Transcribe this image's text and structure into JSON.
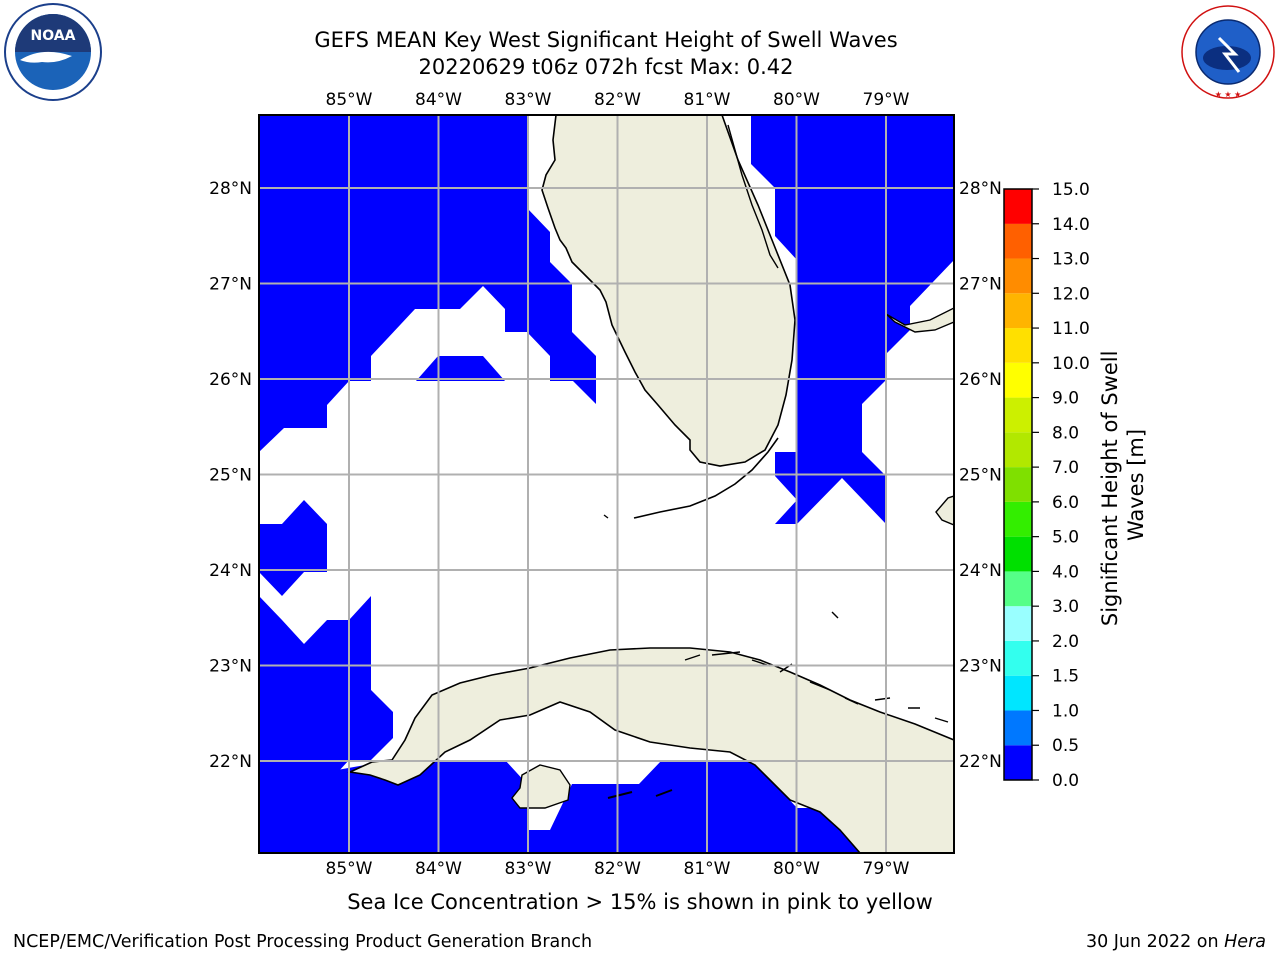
{
  "header": {
    "title_line1": "GEFS MEAN Key West Significant Height of Swell Waves",
    "title_line2": "20220629 t06z 072h fcst   Max: 0.42"
  },
  "logos": {
    "left": "NOAA",
    "right": "NATIONAL WEATHER SERVICE"
  },
  "map": {
    "longitude_ticks": [
      "85°W",
      "84°W",
      "83°W",
      "82°W",
      "81°W",
      "80°W",
      "79°W"
    ],
    "latitude_ticks": [
      "28°N",
      "27°N",
      "26°N",
      "25°N",
      "24°N",
      "23°N",
      "22°N"
    ],
    "lon_values": [
      -85,
      -84,
      -83,
      -82,
      -81,
      -80,
      -79
    ],
    "lat_values": [
      28,
      27,
      26,
      25,
      24,
      23,
      22
    ],
    "colors": {
      "water": "#0000ff",
      "land": "#eeeedd",
      "grid": "#b0b0b0",
      "empty": "#ffffff"
    }
  },
  "colorbar": {
    "label": "Significant Height of Swell Waves [m]",
    "ticks": [
      "15.0",
      "14.0",
      "13.0",
      "12.0",
      "11.0",
      "10.0",
      "9.0",
      "8.0",
      "7.0",
      "6.0",
      "5.0",
      "4.0",
      "3.0",
      "2.0",
      "1.5",
      "1.0",
      "0.5",
      "0.0"
    ],
    "levels": [
      0.0,
      0.5,
      1.0,
      1.5,
      2.0,
      3.0,
      4.0,
      5.0,
      6.0,
      7.0,
      8.0,
      9.0,
      10.0,
      11.0,
      12.0,
      13.0,
      14.0,
      15.0
    ],
    "colors": [
      "#0000ff",
      "#0078ff",
      "#00e6ff",
      "#33ffee",
      "#99ffff",
      "#55ff88",
      "#00e000",
      "#33ee00",
      "#7fe000",
      "#b2e800",
      "#ccf000",
      "#ffff00",
      "#ffe000",
      "#ffb400",
      "#ff8c00",
      "#ff6000",
      "#ff3000",
      "#ff0000"
    ]
  },
  "footer": {
    "note": "Sea Ice Concentration > 15% is shown in pink to yellow",
    "credit_left": "NCEP/EMC/Verification Post Processing Product Generation Branch",
    "credit_right_prefix": "30 Jun 2022 on ",
    "credit_right_host": "Hera"
  }
}
